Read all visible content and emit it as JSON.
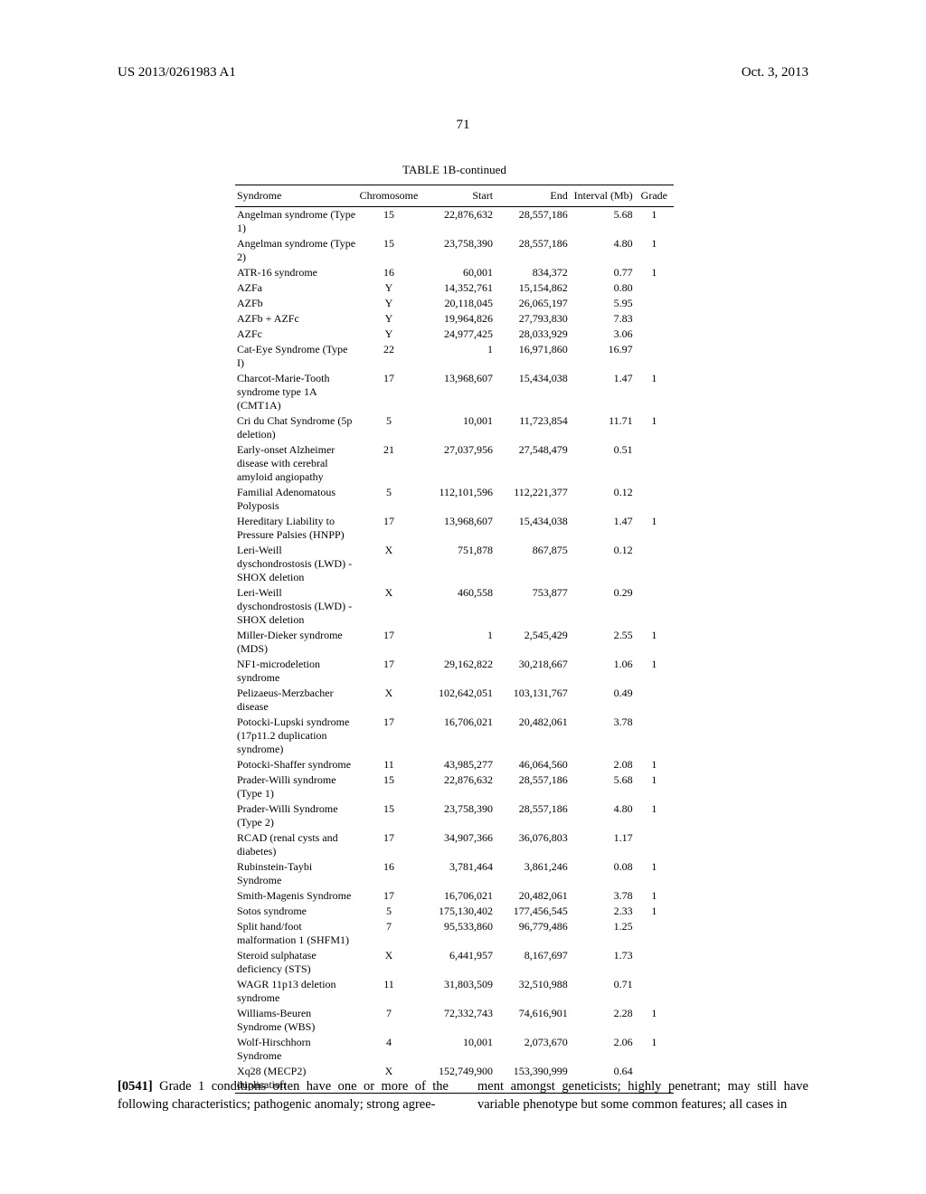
{
  "header": {
    "doc_number": "US 2013/0261983 A1",
    "date": "Oct. 3, 2013",
    "page_number": "71"
  },
  "table": {
    "caption": "TABLE 1B-continued",
    "columns": [
      "Syndrome",
      "Chromosome",
      "Start",
      "End",
      "Interval (Mb)",
      "Grade"
    ],
    "styling": {
      "font_family": "Times New Roman",
      "font_size_pt": 9,
      "caption_font_size_pt": 10,
      "border_color": "#000000",
      "background_color": "#ffffff",
      "col_alignments": [
        "left",
        "center",
        "right",
        "right",
        "right",
        "center"
      ]
    },
    "rows": [
      {
        "syndrome": "Angelman syndrome (Type 1)",
        "chrom": "15",
        "start": "22,876,632",
        "end": "28,557,186",
        "interval": "5.68",
        "grade": "1"
      },
      {
        "syndrome": "Angelman syndrome (Type 2)",
        "chrom": "15",
        "start": "23,758,390",
        "end": "28,557,186",
        "interval": "4.80",
        "grade": "1"
      },
      {
        "syndrome": "ATR-16 syndrome",
        "chrom": "16",
        "start": "60,001",
        "end": "834,372",
        "interval": "0.77",
        "grade": "1"
      },
      {
        "syndrome": "AZFa",
        "chrom": "Y",
        "start": "14,352,761",
        "end": "15,154,862",
        "interval": "0.80",
        "grade": ""
      },
      {
        "syndrome": "AZFb",
        "chrom": "Y",
        "start": "20,118,045",
        "end": "26,065,197",
        "interval": "5.95",
        "grade": ""
      },
      {
        "syndrome": "AZFb + AZFc",
        "chrom": "Y",
        "start": "19,964,826",
        "end": "27,793,830",
        "interval": "7.83",
        "grade": ""
      },
      {
        "syndrome": "AZFc",
        "chrom": "Y",
        "start": "24,977,425",
        "end": "28,033,929",
        "interval": "3.06",
        "grade": ""
      },
      {
        "syndrome": "Cat-Eye Syndrome (Type I)",
        "chrom": "22",
        "start": "1",
        "end": "16,971,860",
        "interval": "16.97",
        "grade": ""
      },
      {
        "syndrome": "Charcot-Marie-Tooth syndrome type 1A (CMT1A)",
        "chrom": "17",
        "start": "13,968,607",
        "end": "15,434,038",
        "interval": "1.47",
        "grade": "1"
      },
      {
        "syndrome": "Cri du Chat Syndrome (5p deletion)",
        "chrom": "5",
        "start": "10,001",
        "end": "11,723,854",
        "interval": "11.71",
        "grade": "1"
      },
      {
        "syndrome": "Early-onset Alzheimer disease with cerebral amyloid angiopathy",
        "chrom": "21",
        "start": "27,037,956",
        "end": "27,548,479",
        "interval": "0.51",
        "grade": ""
      },
      {
        "syndrome": "Familial Adenomatous Polyposis",
        "chrom": "5",
        "start": "112,101,596",
        "end": "112,221,377",
        "interval": "0.12",
        "grade": ""
      },
      {
        "syndrome": "Hereditary Liability to Pressure Palsies (HNPP)",
        "chrom": "17",
        "start": "13,968,607",
        "end": "15,434,038",
        "interval": "1.47",
        "grade": "1"
      },
      {
        "syndrome": "Leri-Weill dyschondrostosis (LWD) - SHOX deletion",
        "chrom": "X",
        "start": "751,878",
        "end": "867,875",
        "interval": "0.12",
        "grade": ""
      },
      {
        "syndrome": "Leri-Weill dyschondrostosis (LWD) - SHOX deletion",
        "chrom": "X",
        "start": "460,558",
        "end": "753,877",
        "interval": "0.29",
        "grade": ""
      },
      {
        "syndrome": "Miller-Dieker syndrome (MDS)",
        "chrom": "17",
        "start": "1",
        "end": "2,545,429",
        "interval": "2.55",
        "grade": "1"
      },
      {
        "syndrome": "NF1-microdeletion syndrome",
        "chrom": "17",
        "start": "29,162,822",
        "end": "30,218,667",
        "interval": "1.06",
        "grade": "1"
      },
      {
        "syndrome": "Pelizaeus-Merzbacher disease",
        "chrom": "X",
        "start": "102,642,051",
        "end": "103,131,767",
        "interval": "0.49",
        "grade": ""
      },
      {
        "syndrome": "Potocki-Lupski syndrome (17p11.2 duplication syndrome)",
        "chrom": "17",
        "start": "16,706,021",
        "end": "20,482,061",
        "interval": "3.78",
        "grade": ""
      },
      {
        "syndrome": "Potocki-Shaffer syndrome",
        "chrom": "11",
        "start": "43,985,277",
        "end": "46,064,560",
        "interval": "2.08",
        "grade": "1"
      },
      {
        "syndrome": "Prader-Willi syndrome (Type 1)",
        "chrom": "15",
        "start": "22,876,632",
        "end": "28,557,186",
        "interval": "5.68",
        "grade": "1"
      },
      {
        "syndrome": "Prader-Willi Syndrome (Type 2)",
        "chrom": "15",
        "start": "23,758,390",
        "end": "28,557,186",
        "interval": "4.80",
        "grade": "1"
      },
      {
        "syndrome": "RCAD (renal cysts and diabetes)",
        "chrom": "17",
        "start": "34,907,366",
        "end": "36,076,803",
        "interval": "1.17",
        "grade": ""
      },
      {
        "syndrome": "Rubinstein-Taybi Syndrome",
        "chrom": "16",
        "start": "3,781,464",
        "end": "3,861,246",
        "interval": "0.08",
        "grade": "1"
      },
      {
        "syndrome": "Smith-Magenis Syndrome",
        "chrom": "17",
        "start": "16,706,021",
        "end": "20,482,061",
        "interval": "3.78",
        "grade": "1"
      },
      {
        "syndrome": "Sotos syndrome",
        "chrom": "5",
        "start": "175,130,402",
        "end": "177,456,545",
        "interval": "2.33",
        "grade": "1"
      },
      {
        "syndrome": "Split hand/foot malformation 1 (SHFM1)",
        "chrom": "7",
        "start": "95,533,860",
        "end": "96,779,486",
        "interval": "1.25",
        "grade": ""
      },
      {
        "syndrome": "Steroid sulphatase deficiency (STS)",
        "chrom": "X",
        "start": "6,441,957",
        "end": "8,167,697",
        "interval": "1.73",
        "grade": ""
      },
      {
        "syndrome": "WAGR 11p13 deletion syndrome",
        "chrom": "11",
        "start": "31,803,509",
        "end": "32,510,988",
        "interval": "0.71",
        "grade": ""
      },
      {
        "syndrome": "Williams-Beuren Syndrome (WBS)",
        "chrom": "7",
        "start": "72,332,743",
        "end": "74,616,901",
        "interval": "2.28",
        "grade": "1"
      },
      {
        "syndrome": "Wolf-Hirschhorn Syndrome",
        "chrom": "4",
        "start": "10,001",
        "end": "2,073,670",
        "interval": "2.06",
        "grade": "1"
      },
      {
        "syndrome": "Xq28 (MECP2) duplication",
        "chrom": "X",
        "start": "152,749,900",
        "end": "153,390,999",
        "interval": "0.64",
        "grade": ""
      }
    ]
  },
  "body": {
    "para_number": "[0541]",
    "left_text": "Grade 1 conditions often have one or more of the following characteristics; pathogenic anomaly; strong agree-",
    "right_text": "ment amongst geneticists; highly penetrant; may still have variable phenotype but some common features; all cases in"
  }
}
